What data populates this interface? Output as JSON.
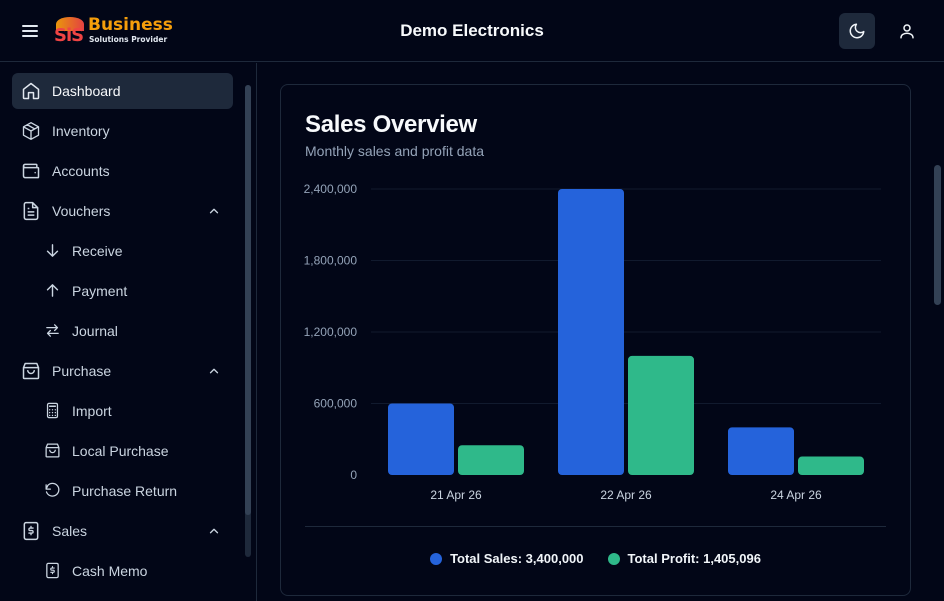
{
  "header": {
    "app_title": "Demo Electronics",
    "logo_mark": "SiS",
    "logo_name": "Business",
    "logo_tagline": "Solutions Provider",
    "icons": [
      "menu-icon",
      "moon-icon",
      "user-icon"
    ]
  },
  "sidebar": {
    "items": [
      {
        "label": "Dashboard",
        "icon": "home-icon",
        "active": true
      },
      {
        "label": "Inventory",
        "icon": "box-icon"
      },
      {
        "label": "Accounts",
        "icon": "wallet-icon"
      },
      {
        "label": "Vouchers",
        "icon": "file-text-icon",
        "expanded": true
      },
      {
        "label": "Receive",
        "icon": "arrow-down-icon",
        "sub": true
      },
      {
        "label": "Payment",
        "icon": "arrow-up-icon",
        "sub": true
      },
      {
        "label": "Journal",
        "icon": "arrows-swap-icon",
        "sub": true
      },
      {
        "label": "Purchase",
        "icon": "shopping-bag-icon",
        "expanded": true
      },
      {
        "label": "Import",
        "icon": "calculator-icon",
        "sub": true
      },
      {
        "label": "Local Purchase",
        "icon": "shopping-bag-icon",
        "sub": true
      },
      {
        "label": "Purchase Return",
        "icon": "rotate-ccw-icon",
        "sub": true
      },
      {
        "label": "Sales",
        "icon": "dollar-receipt-icon",
        "expanded": true
      },
      {
        "label": "Cash Memo",
        "icon": "dollar-receipt-icon",
        "sub": true
      }
    ]
  },
  "card": {
    "title": "Sales Overview",
    "subtitle": "Monthly sales and profit data"
  },
  "legend": {
    "sales_label": "Total Sales: 3,400,000",
    "profit_label": "Total Profit: 1,405,096"
  },
  "colors": {
    "sales": "#2563db",
    "profit": "#2fb98a",
    "background": "#020617",
    "surface": "#1e293b"
  },
  "chart_data": {
    "type": "bar",
    "categories": [
      "21 Apr 26",
      "22 Apr 26",
      "24 Apr 26"
    ],
    "series": [
      {
        "name": "Total Sales",
        "values": [
          600000,
          2400000,
          400000
        ]
      },
      {
        "name": "Total Profit",
        "values": [
          250000,
          1000000,
          155096
        ]
      }
    ],
    "yticks": [
      "0",
      "600,000",
      "1,200,000",
      "1,800,000",
      "2,400,000"
    ],
    "ylim": [
      0,
      2400000
    ],
    "grid": true,
    "legend": "bottom"
  }
}
